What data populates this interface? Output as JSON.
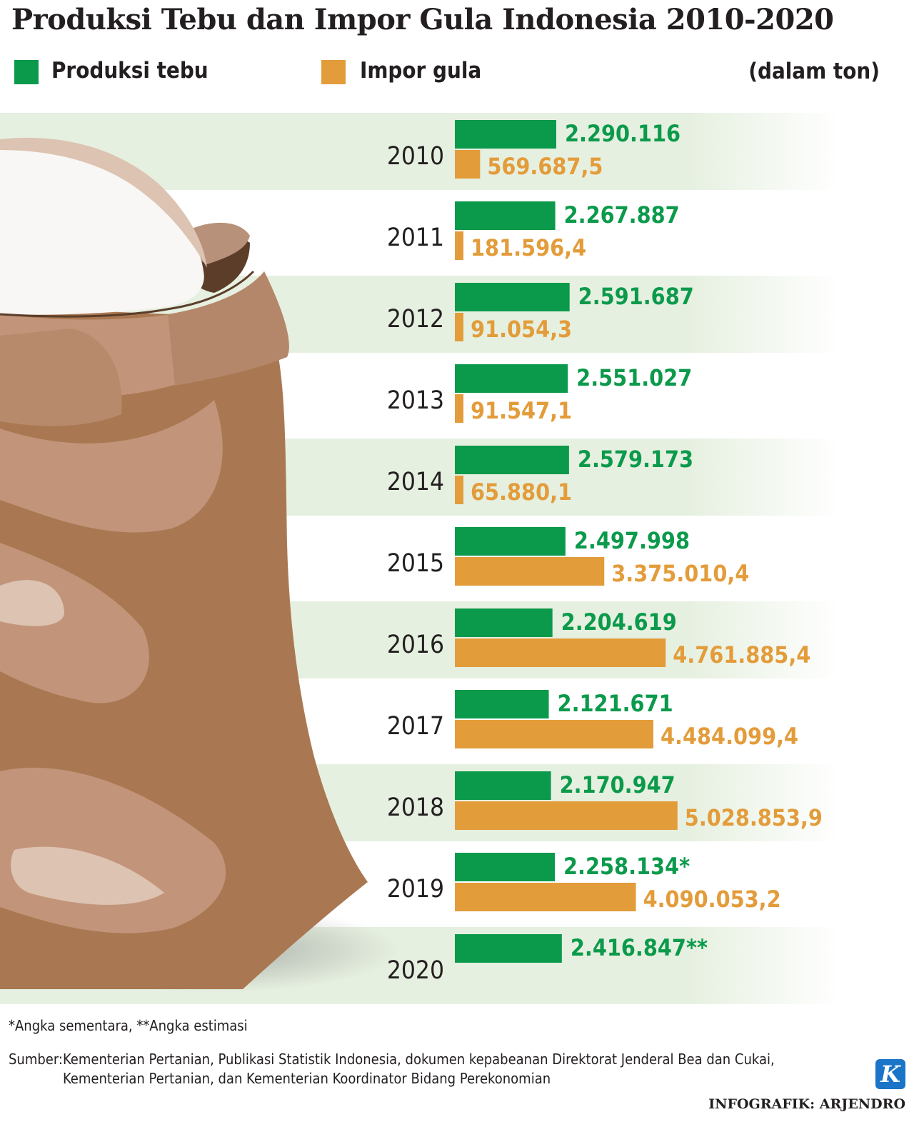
{
  "title": "Produksi Tebu dan Impor Gula Indonesia 2010-2020",
  "legend": {
    "series_a": "Produksi tebu",
    "series_b": "Impor gula",
    "unit": "(dalam ton)"
  },
  "colors": {
    "produksi": "#0b9a4b",
    "impor": "#e39c3a",
    "stripe": "#e8f2e3",
    "sack_dark": "#a97852",
    "sack_mid": "#c2957a",
    "sack_light": "#ddc3b2",
    "sugar": "#f8f7f5"
  },
  "chart_data": {
    "type": "bar",
    "orientation": "horizontal",
    "categories": [
      "2010",
      "2011",
      "2012",
      "2013",
      "2014",
      "2015",
      "2016",
      "2017",
      "2018",
      "2019",
      "2020"
    ],
    "series": [
      {
        "name": "Produksi tebu",
        "values": [
          2290116,
          2267887,
          2591687,
          2551027,
          2579173,
          2497998,
          2204619,
          2121671,
          2170947,
          2258134,
          2416847
        ],
        "labels": [
          "2.290.116",
          "2.267.887",
          "2.591.687",
          "2.551.027",
          "2.579.173",
          "2.497.998",
          "2.204.619",
          "2.121.671",
          "2.170.947",
          "2.258.134*",
          "2.416.847**"
        ]
      },
      {
        "name": "Impor gula",
        "values": [
          569687.5,
          181596.4,
          91054.3,
          91547.1,
          65880.1,
          3375010.4,
          4761885.4,
          4484099.4,
          5028853.9,
          4090053.2,
          null
        ],
        "labels": [
          "569.687,5",
          "181.596,4",
          "91.054,3",
          "91.547,1",
          "65.880,1",
          "3.375.010,4",
          "4.761.885,4",
          "4.484.099,4",
          "5.028.853,9",
          "4.090.053,2",
          ""
        ]
      }
    ],
    "unit": "ton",
    "grid": false
  },
  "footnote": "*Angka sementara, **Angka estimasi",
  "source": {
    "label": "Sumber:",
    "line1": "Kementerian Pertanian, Publikasi Statistik Indonesia, dokumen kepabeanan Direktorat Jenderal Bea dan Cukai,",
    "line2": "Kementerian Pertanian, dan Kementerian Koordinator Bidang Perekonomian"
  },
  "logo_letter": "K",
  "credit": "INFOGRAFIK: ARJENDRO"
}
